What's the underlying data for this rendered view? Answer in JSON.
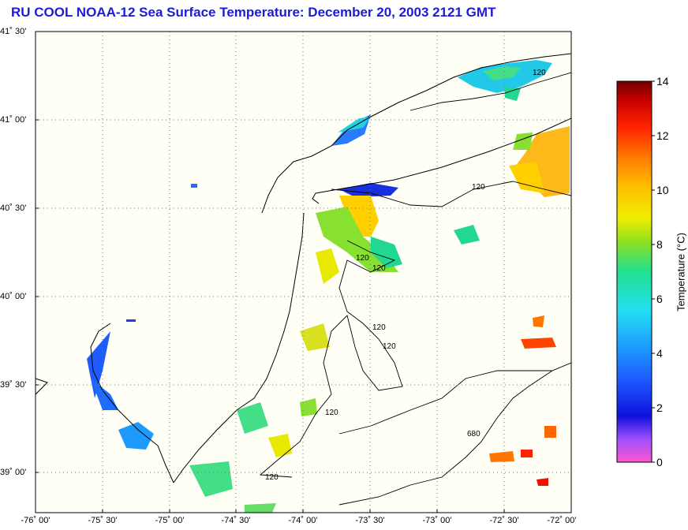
{
  "title": "RU COOL  NOAA-12  Sea Surface Temperature:  December 20, 2003 2121 GMT",
  "map": {
    "lat_ticks": [
      "41˚ 30'",
      "41˚ 00'",
      "40˚ 30'",
      "40˚ 00'",
      "39˚ 30'",
      "39˚ 00'"
    ],
    "lon_ticks": [
      "-76˚ 00'",
      "-75˚ 30'",
      "-75˚ 00'",
      "-74˚ 30'",
      "-74˚ 00'",
      "-73˚ 30'",
      "-73˚ 00'",
      "-72˚ 30'",
      "-72˚ 00'"
    ],
    "contour_labels": [
      "120",
      "120",
      "120",
      "120",
      "120",
      "120",
      "120",
      "120",
      "680"
    ],
    "land_color": "#fffff6",
    "grid_style": "dotted"
  },
  "colorbar": {
    "label": "Temperature (°C)",
    "ticks": [
      "14",
      "12",
      "10",
      "8",
      "6",
      "4",
      "2",
      "0"
    ],
    "range": [
      0,
      14
    ],
    "colors": [
      "#ff66dd",
      "#9966ff",
      "#2222ee",
      "#2255ff",
      "#2299ff",
      "#22ddee",
      "#22dd88",
      "#88dd22",
      "#dddd00",
      "#ffcc00",
      "#ff8800",
      "#ff3300",
      "#cc0000",
      "#770000"
    ]
  }
}
